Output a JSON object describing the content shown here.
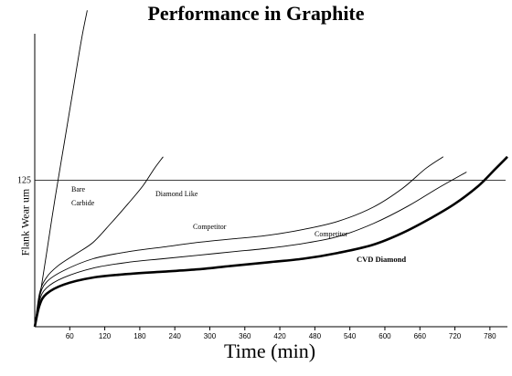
{
  "chart_data": {
    "type": "line",
    "title": "Performance in Graphite",
    "xlabel": "Time (min)",
    "ylabel": "Flank Wear um",
    "x_ticks": [
      60,
      120,
      180,
      240,
      300,
      360,
      420,
      480,
      540,
      600,
      660,
      720,
      780
    ],
    "xlim": [
      0,
      810
    ],
    "ylim": [
      0,
      250
    ],
    "grid": false,
    "reference_line": {
      "value": 125,
      "label": "125"
    },
    "series": [
      {
        "name": "Bare Carbide",
        "label_lines": [
          "Bare",
          "Carbide"
        ],
        "color": "#000000",
        "weight": "thin",
        "points": [
          [
            0,
            0
          ],
          [
            10,
            30
          ],
          [
            20,
            62
          ],
          [
            35,
            110
          ],
          [
            50,
            155
          ],
          [
            65,
            200
          ],
          [
            80,
            245
          ],
          [
            90,
            270
          ]
        ]
      },
      {
        "name": "Diamond Like",
        "label_lines": [
          "Diamond Like"
        ],
        "color": "#000000",
        "weight": "thin",
        "points": [
          [
            0,
            0
          ],
          [
            8,
            28
          ],
          [
            20,
            42
          ],
          [
            40,
            52
          ],
          [
            70,
            62
          ],
          [
            100,
            72
          ],
          [
            130,
            88
          ],
          [
            160,
            105
          ],
          [
            185,
            120
          ],
          [
            205,
            135
          ],
          [
            220,
            145
          ]
        ]
      },
      {
        "name": "Competitor",
        "label_lines": [
          "Competitor"
        ],
        "color": "#000000",
        "weight": "thin",
        "points": [
          [
            0,
            0
          ],
          [
            8,
            25
          ],
          [
            20,
            38
          ],
          [
            50,
            48
          ],
          [
            100,
            58
          ],
          [
            160,
            64
          ],
          [
            220,
            68
          ],
          [
            280,
            72
          ],
          [
            340,
            75
          ],
          [
            400,
            78
          ],
          [
            460,
            83
          ],
          [
            520,
            90
          ],
          [
            580,
            102
          ],
          [
            630,
            118
          ],
          [
            670,
            135
          ],
          [
            700,
            145
          ]
        ]
      },
      {
        "name": "Competitor",
        "label_lines": [
          "Competitor"
        ],
        "color": "#000000",
        "weight": "thin",
        "points": [
          [
            0,
            0
          ],
          [
            8,
            22
          ],
          [
            20,
            33
          ],
          [
            50,
            42
          ],
          [
            100,
            50
          ],
          [
            160,
            55
          ],
          [
            220,
            58
          ],
          [
            280,
            61
          ],
          [
            340,
            64
          ],
          [
            400,
            67
          ],
          [
            460,
            71
          ],
          [
            520,
            77
          ],
          [
            580,
            88
          ],
          [
            640,
            103
          ],
          [
            690,
            118
          ],
          [
            740,
            132
          ]
        ]
      },
      {
        "name": "CVD Diamond",
        "label_lines": [
          "CVD Diamond"
        ],
        "color": "#000000",
        "weight": "bold",
        "points": [
          [
            0,
            0
          ],
          [
            8,
            18
          ],
          [
            20,
            28
          ],
          [
            50,
            36
          ],
          [
            100,
            42
          ],
          [
            160,
            45
          ],
          [
            220,
            47
          ],
          [
            280,
            49
          ],
          [
            340,
            52
          ],
          [
            400,
            55
          ],
          [
            460,
            58
          ],
          [
            520,
            63
          ],
          [
            580,
            70
          ],
          [
            630,
            80
          ],
          [
            680,
            93
          ],
          [
            720,
            105
          ],
          [
            760,
            120
          ],
          [
            790,
            135
          ],
          [
            810,
            145
          ]
        ]
      }
    ]
  }
}
